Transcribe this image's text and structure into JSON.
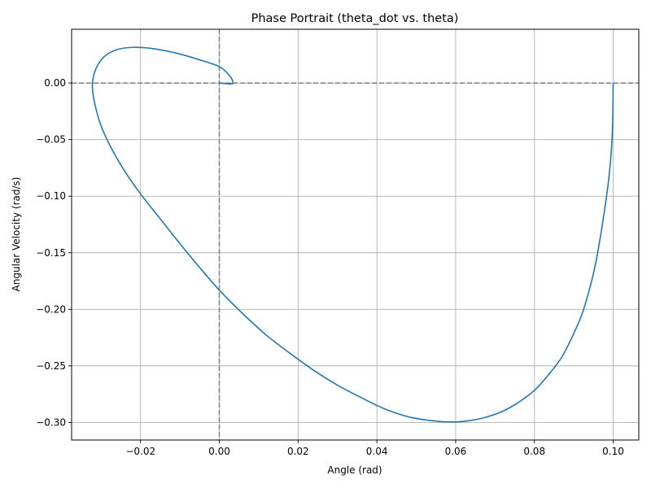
{
  "chart_data": {
    "type": "line",
    "title": "Phase Portrait (theta_dot vs. theta)",
    "xlabel": "Angle (rad)",
    "ylabel": "Angular Velocity (rad/s)",
    "xlim": [
      -0.0375,
      0.1065
    ],
    "ylim": [
      -0.3155,
      0.0475
    ],
    "xticks": [
      -0.02,
      0.0,
      0.02,
      0.04,
      0.06,
      0.08,
      0.1
    ],
    "xtick_labels": [
      "−0.02",
      "0.00",
      "0.02",
      "0.04",
      "0.06",
      "0.08",
      "0.10"
    ],
    "yticks": [
      0.0,
      -0.05,
      -0.1,
      -0.15,
      -0.2,
      -0.25,
      -0.3
    ],
    "ytick_labels": [
      "0.00",
      "−0.05",
      "−0.10",
      "−0.15",
      "−0.20",
      "−0.25",
      "−0.30"
    ],
    "grid": true,
    "reference_lines": {
      "x": 0.0,
      "y": 0.0,
      "style": "dashed",
      "color": "#808080"
    },
    "series": [
      {
        "color": "#1f77b4",
        "points": [
          [
            0.1,
            0.0
          ],
          [
            0.0999,
            -0.03
          ],
          [
            0.0997,
            -0.05
          ],
          [
            0.0993,
            -0.07
          ],
          [
            0.0987,
            -0.09
          ],
          [
            0.0979,
            -0.11
          ],
          [
            0.0968,
            -0.135
          ],
          [
            0.0955,
            -0.16
          ],
          [
            0.094,
            -0.182
          ],
          [
            0.092,
            -0.205
          ],
          [
            0.0895,
            -0.225
          ],
          [
            0.087,
            -0.242
          ],
          [
            0.084,
            -0.256
          ],
          [
            0.0805,
            -0.27
          ],
          [
            0.0765,
            -0.281
          ],
          [
            0.072,
            -0.29
          ],
          [
            0.067,
            -0.296
          ],
          [
            0.062,
            -0.299
          ],
          [
            0.058,
            -0.2995
          ],
          [
            0.053,
            -0.298
          ],
          [
            0.048,
            -0.295
          ],
          [
            0.042,
            -0.288
          ],
          [
            0.036,
            -0.278
          ],
          [
            0.03,
            -0.267
          ],
          [
            0.024,
            -0.254
          ],
          [
            0.018,
            -0.239
          ],
          [
            0.012,
            -0.223
          ],
          [
            0.006,
            -0.204
          ],
          [
            0.0,
            -0.183
          ],
          [
            -0.005,
            -0.163
          ],
          [
            -0.01,
            -0.142
          ],
          [
            -0.015,
            -0.12
          ],
          [
            -0.02,
            -0.098
          ],
          [
            -0.024,
            -0.078
          ],
          [
            -0.0275,
            -0.057
          ],
          [
            -0.03,
            -0.038
          ],
          [
            -0.0315,
            -0.02
          ],
          [
            -0.0322,
            -0.005
          ],
          [
            -0.032,
            0.005
          ],
          [
            -0.031,
            0.015
          ],
          [
            -0.029,
            0.024
          ],
          [
            -0.026,
            0.0295
          ],
          [
            -0.022,
            0.0315
          ],
          [
            -0.017,
            0.0305
          ],
          [
            -0.011,
            0.0265
          ],
          [
            -0.005,
            0.0205
          ],
          [
            0.0,
            0.0145
          ],
          [
            0.0025,
            0.007
          ],
          [
            0.0035,
            0.0005
          ],
          [
            0.003,
            -0.0008
          ],
          [
            0.0015,
            -0.0005
          ],
          [
            0.0,
            0.0
          ]
        ]
      }
    ]
  }
}
